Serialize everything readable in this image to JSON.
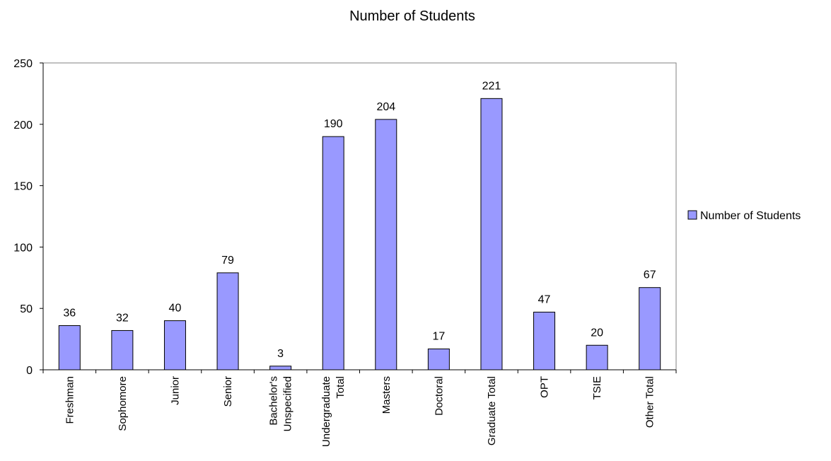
{
  "chart_data": {
    "type": "bar",
    "title": "Number of Students",
    "xlabel": "",
    "ylabel": "",
    "ylim": [
      0,
      250
    ],
    "yticks": [
      0,
      50,
      100,
      150,
      200,
      250
    ],
    "grid": false,
    "legend_position": "right",
    "categories": [
      [
        "Freshman"
      ],
      [
        "Sophomore"
      ],
      [
        "Junior"
      ],
      [
        "Senior"
      ],
      [
        "Bachelor's",
        "Unspecified"
      ],
      [
        "Undergraduate",
        "Total"
      ],
      [
        "Masters"
      ],
      [
        "Doctoral"
      ],
      [
        "Graduate Total"
      ],
      [
        "OPT"
      ],
      [
        "TSIE"
      ],
      [
        "Other Total"
      ]
    ],
    "series": [
      {
        "name": "Number of Students",
        "color": "#9999ff",
        "values": [
          36,
          32,
          40,
          79,
          3,
          190,
          204,
          17,
          221,
          47,
          20,
          67
        ]
      }
    ]
  }
}
